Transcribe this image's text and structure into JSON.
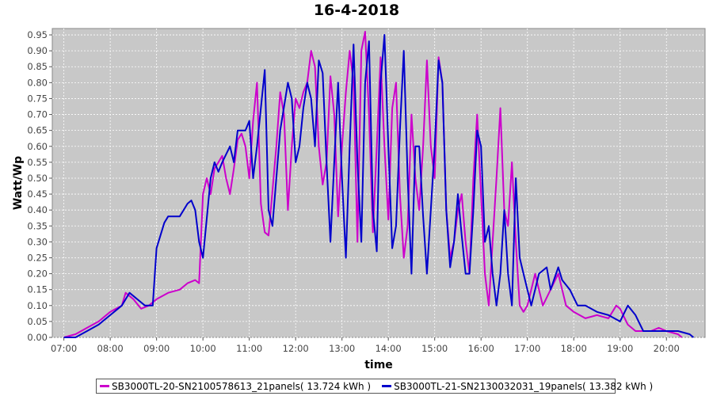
{
  "chart_data": {
    "type": "line",
    "title": "16-4-2018",
    "xlabel": "time",
    "ylabel": "Watt/Wp",
    "x_ticks": [
      "07:00",
      "08:00",
      "09:00",
      "10:00",
      "11:00",
      "12:00",
      "13:00",
      "14:00",
      "15:00",
      "16:00",
      "17:00",
      "18:00",
      "19:00",
      "20:00"
    ],
    "y_ticks": [
      "0.00",
      "0.05",
      "0.10",
      "0.15",
      "0.20",
      "0.25",
      "0.30",
      "0.35",
      "0.40",
      "0.45",
      "0.50",
      "0.55",
      "0.60",
      "0.65",
      "0.70",
      "0.75",
      "0.80",
      "0.85",
      "0.90",
      "0.95"
    ],
    "xlim": [
      "06:45",
      "20:50"
    ],
    "ylim": [
      0,
      0.97
    ],
    "grid": true,
    "legend_position": "bottom",
    "series": [
      {
        "name": "SB3000TL-20-SN2100578613_21panels( 13.724 kWh )",
        "color": "#cc00cc",
        "points": [
          [
            "07:00",
            0.0
          ],
          [
            "07:15",
            0.01
          ],
          [
            "07:30",
            0.03
          ],
          [
            "07:45",
            0.05
          ],
          [
            "08:00",
            0.08
          ],
          [
            "08:15",
            0.1
          ],
          [
            "08:20",
            0.14
          ],
          [
            "08:30",
            0.12
          ],
          [
            "08:40",
            0.09
          ],
          [
            "08:50",
            0.1
          ],
          [
            "09:00",
            0.12
          ],
          [
            "09:15",
            0.14
          ],
          [
            "09:30",
            0.15
          ],
          [
            "09:40",
            0.17
          ],
          [
            "09:50",
            0.18
          ],
          [
            "09:55",
            0.17
          ],
          [
            "10:00",
            0.45
          ],
          [
            "10:05",
            0.5
          ],
          [
            "10:10",
            0.45
          ],
          [
            "10:15",
            0.53
          ],
          [
            "10:20",
            0.55
          ],
          [
            "10:25",
            0.57
          ],
          [
            "10:30",
            0.5
          ],
          [
            "10:35",
            0.45
          ],
          [
            "10:40",
            0.53
          ],
          [
            "10:45",
            0.62
          ],
          [
            "10:50",
            0.64
          ],
          [
            "10:55",
            0.6
          ],
          [
            "11:00",
            0.5
          ],
          [
            "11:05",
            0.68
          ],
          [
            "11:10",
            0.8
          ],
          [
            "11:15",
            0.42
          ],
          [
            "11:20",
            0.33
          ],
          [
            "11:25",
            0.32
          ],
          [
            "11:35",
            0.6
          ],
          [
            "11:40",
            0.77
          ],
          [
            "11:45",
            0.7
          ],
          [
            "11:50",
            0.4
          ],
          [
            "11:55",
            0.6
          ],
          [
            "12:00",
            0.75
          ],
          [
            "12:05",
            0.72
          ],
          [
            "12:10",
            0.77
          ],
          [
            "12:15",
            0.8
          ],
          [
            "12:20",
            0.9
          ],
          [
            "12:25",
            0.85
          ],
          [
            "12:30",
            0.6
          ],
          [
            "12:35",
            0.48
          ],
          [
            "12:40",
            0.55
          ],
          [
            "12:45",
            0.82
          ],
          [
            "12:50",
            0.7
          ],
          [
            "12:55",
            0.38
          ],
          [
            "13:00",
            0.6
          ],
          [
            "13:05",
            0.77
          ],
          [
            "13:10",
            0.9
          ],
          [
            "13:15",
            0.8
          ],
          [
            "13:20",
            0.3
          ],
          [
            "13:25",
            0.9
          ],
          [
            "13:30",
            0.96
          ],
          [
            "13:35",
            0.7
          ],
          [
            "13:40",
            0.33
          ],
          [
            "13:45",
            0.6
          ],
          [
            "13:50",
            0.88
          ],
          [
            "13:55",
            0.6
          ],
          [
            "14:00",
            0.37
          ],
          [
            "14:05",
            0.72
          ],
          [
            "14:10",
            0.8
          ],
          [
            "14:15",
            0.45
          ],
          [
            "14:20",
            0.25
          ],
          [
            "14:25",
            0.35
          ],
          [
            "14:30",
            0.7
          ],
          [
            "14:35",
            0.5
          ],
          [
            "14:40",
            0.4
          ],
          [
            "14:45",
            0.6
          ],
          [
            "14:50",
            0.87
          ],
          [
            "14:55",
            0.6
          ],
          [
            "15:00",
            0.5
          ],
          [
            "15:05",
            0.88
          ],
          [
            "15:10",
            0.8
          ],
          [
            "15:15",
            0.4
          ],
          [
            "15:20",
            0.25
          ],
          [
            "15:25",
            0.3
          ],
          [
            "15:30",
            0.4
          ],
          [
            "15:35",
            0.45
          ],
          [
            "15:40",
            0.3
          ],
          [
            "15:45",
            0.2
          ],
          [
            "15:50",
            0.5
          ],
          [
            "15:55",
            0.7
          ],
          [
            "16:00",
            0.45
          ],
          [
            "16:05",
            0.2
          ],
          [
            "16:10",
            0.1
          ],
          [
            "16:15",
            0.3
          ],
          [
            "16:20",
            0.5
          ],
          [
            "16:25",
            0.72
          ],
          [
            "16:30",
            0.4
          ],
          [
            "16:35",
            0.35
          ],
          [
            "16:40",
            0.55
          ],
          [
            "16:45",
            0.3
          ],
          [
            "16:50",
            0.1
          ],
          [
            "16:55",
            0.08
          ],
          [
            "17:00",
            0.1
          ],
          [
            "17:10",
            0.2
          ],
          [
            "17:15",
            0.15
          ],
          [
            "17:20",
            0.1
          ],
          [
            "17:30",
            0.15
          ],
          [
            "17:40",
            0.2
          ],
          [
            "17:45",
            0.15
          ],
          [
            "17:50",
            0.1
          ],
          [
            "18:00",
            0.08
          ],
          [
            "18:15",
            0.06
          ],
          [
            "18:30",
            0.07
          ],
          [
            "18:45",
            0.06
          ],
          [
            "18:55",
            0.1
          ],
          [
            "19:00",
            0.09
          ],
          [
            "19:10",
            0.04
          ],
          [
            "19:20",
            0.02
          ],
          [
            "19:40",
            0.02
          ],
          [
            "19:50",
            0.03
          ],
          [
            "20:00",
            0.02
          ],
          [
            "20:15",
            0.01
          ],
          [
            "20:20",
            0.0
          ]
        ]
      },
      {
        "name": "SB3000TL-21-SN2130032031_19panels( 13.382 kWh )",
        "color": "#0000cc",
        "points": [
          [
            "07:00",
            0.0
          ],
          [
            "07:15",
            0.0
          ],
          [
            "07:30",
            0.02
          ],
          [
            "07:45",
            0.04
          ],
          [
            "08:00",
            0.07
          ],
          [
            "08:15",
            0.1
          ],
          [
            "08:25",
            0.14
          ],
          [
            "08:35",
            0.12
          ],
          [
            "08:45",
            0.1
          ],
          [
            "08:55",
            0.1
          ],
          [
            "09:00",
            0.28
          ],
          [
            "09:10",
            0.36
          ],
          [
            "09:15",
            0.38
          ],
          [
            "09:30",
            0.38
          ],
          [
            "09:40",
            0.42
          ],
          [
            "09:45",
            0.43
          ],
          [
            "09:50",
            0.4
          ],
          [
            "09:55",
            0.3
          ],
          [
            "10:00",
            0.25
          ],
          [
            "10:10",
            0.5
          ],
          [
            "10:15",
            0.55
          ],
          [
            "10:20",
            0.52
          ],
          [
            "10:25",
            0.55
          ],
          [
            "10:35",
            0.6
          ],
          [
            "10:40",
            0.55
          ],
          [
            "10:45",
            0.65
          ],
          [
            "10:55",
            0.65
          ],
          [
            "11:00",
            0.68
          ],
          [
            "11:05",
            0.5
          ],
          [
            "11:10",
            0.6
          ],
          [
            "11:15",
            0.72
          ],
          [
            "11:20",
            0.84
          ],
          [
            "11:25",
            0.4
          ],
          [
            "11:30",
            0.35
          ],
          [
            "11:35",
            0.5
          ],
          [
            "11:40",
            0.65
          ],
          [
            "11:50",
            0.8
          ],
          [
            "11:55",
            0.75
          ],
          [
            "12:00",
            0.55
          ],
          [
            "12:05",
            0.6
          ],
          [
            "12:10",
            0.72
          ],
          [
            "12:15",
            0.8
          ],
          [
            "12:20",
            0.75
          ],
          [
            "12:25",
            0.6
          ],
          [
            "12:30",
            0.87
          ],
          [
            "12:35",
            0.83
          ],
          [
            "12:40",
            0.55
          ],
          [
            "12:45",
            0.3
          ],
          [
            "12:50",
            0.55
          ],
          [
            "12:55",
            0.8
          ],
          [
            "13:00",
            0.5
          ],
          [
            "13:05",
            0.25
          ],
          [
            "13:10",
            0.6
          ],
          [
            "13:15",
            0.92
          ],
          [
            "13:20",
            0.55
          ],
          [
            "13:25",
            0.3
          ],
          [
            "13:30",
            0.8
          ],
          [
            "13:35",
            0.93
          ],
          [
            "13:40",
            0.4
          ],
          [
            "13:45",
            0.27
          ],
          [
            "13:50",
            0.8
          ],
          [
            "13:55",
            0.95
          ],
          [
            "14:00",
            0.6
          ],
          [
            "14:05",
            0.28
          ],
          [
            "14:10",
            0.35
          ],
          [
            "14:15",
            0.65
          ],
          [
            "14:20",
            0.9
          ],
          [
            "14:25",
            0.5
          ],
          [
            "14:30",
            0.2
          ],
          [
            "14:35",
            0.6
          ],
          [
            "14:40",
            0.6
          ],
          [
            "14:45",
            0.38
          ],
          [
            "14:50",
            0.2
          ],
          [
            "14:55",
            0.4
          ],
          [
            "15:00",
            0.6
          ],
          [
            "15:05",
            0.87
          ],
          [
            "15:10",
            0.8
          ],
          [
            "15:15",
            0.4
          ],
          [
            "15:20",
            0.22
          ],
          [
            "15:25",
            0.3
          ],
          [
            "15:30",
            0.45
          ],
          [
            "15:35",
            0.32
          ],
          [
            "15:40",
            0.2
          ],
          [
            "15:45",
            0.2
          ],
          [
            "15:50",
            0.4
          ],
          [
            "15:55",
            0.65
          ],
          [
            "16:00",
            0.6
          ],
          [
            "16:05",
            0.3
          ],
          [
            "16:10",
            0.35
          ],
          [
            "16:15",
            0.2
          ],
          [
            "16:20",
            0.1
          ],
          [
            "16:25",
            0.2
          ],
          [
            "16:30",
            0.4
          ],
          [
            "16:35",
            0.2
          ],
          [
            "16:40",
            0.1
          ],
          [
            "16:45",
            0.5
          ],
          [
            "16:50",
            0.25
          ],
          [
            "16:55",
            0.2
          ],
          [
            "17:00",
            0.15
          ],
          [
            "17:05",
            0.1
          ],
          [
            "17:15",
            0.2
          ],
          [
            "17:25",
            0.22
          ],
          [
            "17:30",
            0.15
          ],
          [
            "17:40",
            0.22
          ],
          [
            "17:45",
            0.18
          ],
          [
            "17:55",
            0.15
          ],
          [
            "18:05",
            0.1
          ],
          [
            "18:15",
            0.1
          ],
          [
            "18:30",
            0.08
          ],
          [
            "18:45",
            0.07
          ],
          [
            "19:00",
            0.05
          ],
          [
            "19:10",
            0.1
          ],
          [
            "19:20",
            0.07
          ],
          [
            "19:30",
            0.02
          ],
          [
            "19:45",
            0.02
          ],
          [
            "19:55",
            0.02
          ],
          [
            "20:00",
            0.02
          ],
          [
            "20:15",
            0.02
          ],
          [
            "20:30",
            0.01
          ],
          [
            "20:35",
            0.0
          ]
        ]
      }
    ]
  }
}
